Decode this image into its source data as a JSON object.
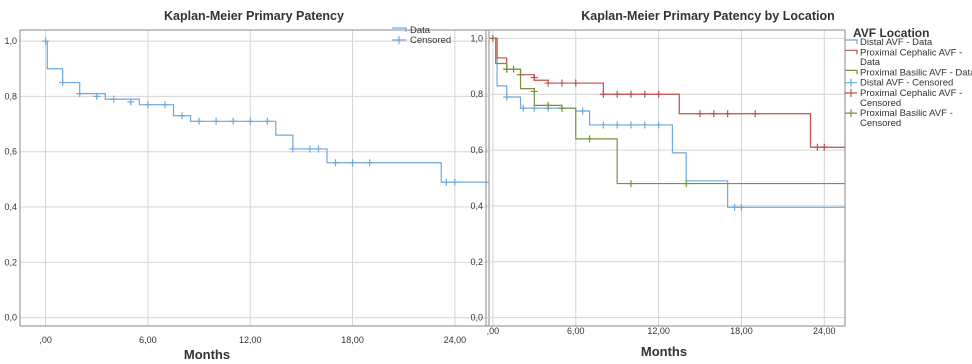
{
  "chart_data": [
    {
      "type": "line",
      "title": "Kaplan-Meier Primary Patency",
      "xlabel": "Months",
      "ylabel": "",
      "xlim": [
        -1.5,
        26
      ],
      "ylim": [
        -0.03,
        1.04
      ],
      "x_ticks": [
        0,
        6,
        12,
        18,
        24
      ],
      "x_tick_labels": [
        ",00",
        "6,00",
        "12,00",
        "18,00",
        "24,00"
      ],
      "y_ticks": [
        0,
        0.2,
        0.4,
        0.6,
        0.8,
        1.0
      ],
      "y_tick_labels": [
        "0,0",
        "0,2",
        "0,4",
        "0,6",
        "0,8",
        "1,0"
      ],
      "grid": true,
      "legend": {
        "position": "top-right",
        "entries": [
          {
            "label": "Data",
            "marker": "line",
            "color": "#6fa8dc"
          },
          {
            "label": "Censored",
            "marker": "plus",
            "color": "#6fa8dc"
          }
        ]
      },
      "series": [
        {
          "name": "Data",
          "color": "#6fa8dc",
          "steps": [
            [
              0,
              1.0
            ],
            [
              0.1,
              0.9
            ],
            [
              1,
              0.85
            ],
            [
              2,
              0.81
            ],
            [
              3.5,
              0.79
            ],
            [
              5.5,
              0.77
            ],
            [
              7.5,
              0.73
            ],
            [
              8.5,
              0.71
            ],
            [
              13.5,
              0.66
            ],
            [
              14.5,
              0.61
            ],
            [
              16.5,
              0.56
            ],
            [
              23.2,
              0.49
            ]
          ],
          "x_end": 26,
          "censored": [
            [
              0,
              1.0
            ],
            [
              1,
              0.85
            ],
            [
              2,
              0.81
            ],
            [
              3,
              0.8
            ],
            [
              4,
              0.79
            ],
            [
              5,
              0.78
            ],
            [
              6,
              0.77
            ],
            [
              7,
              0.77
            ],
            [
              8,
              0.73
            ],
            [
              9,
              0.71
            ],
            [
              10,
              0.71
            ],
            [
              11,
              0.71
            ],
            [
              12,
              0.71
            ],
            [
              13,
              0.71
            ],
            [
              14.5,
              0.61
            ],
            [
              15.5,
              0.61
            ],
            [
              16,
              0.61
            ],
            [
              17,
              0.56
            ],
            [
              18,
              0.56
            ],
            [
              19,
              0.56
            ],
            [
              23.5,
              0.49
            ],
            [
              24,
              0.49
            ]
          ]
        }
      ]
    },
    {
      "type": "line",
      "title": "Kaplan-Meier Primary Patency by Location",
      "xlabel": "Months",
      "ylabel": "",
      "xlim": [
        -0.5,
        25.5
      ],
      "ylim": [
        -0.03,
        1.03
      ],
      "x_ticks": [
        0,
        6,
        12,
        18,
        24
      ],
      "x_tick_labels": [
        ",00",
        "6,00",
        "12,00",
        "18,00",
        "24,00"
      ],
      "y_ticks": [
        0,
        0.2,
        0.4,
        0.6,
        0.8,
        1.0
      ],
      "y_tick_labels": [
        "0,0",
        "0,2",
        "0,4",
        "0,6",
        "0,8",
        "1,0"
      ],
      "grid": true,
      "legend": {
        "title": "AVF Location",
        "position": "top-right",
        "entries": [
          {
            "label_lines": [
              "Distal AVF - Data"
            ],
            "marker": "line",
            "color": "#6fa8dc"
          },
          {
            "label_lines": [
              "Proximal Cephalic AVF -",
              "Data"
            ],
            "marker": "line",
            "color": "#c0504d"
          },
          {
            "label_lines": [
              "Proximal Basilic AVF - Data"
            ],
            "marker": "line",
            "color": "#77933c"
          },
          {
            "label_lines": [
              "Distal AVF - Censored"
            ],
            "marker": "plus",
            "color": "#6fa8dc"
          },
          {
            "label_lines": [
              "Proximal Cephalic AVF -",
              "Censored"
            ],
            "marker": "plus",
            "color": "#c0504d"
          },
          {
            "label_lines": [
              "Proximal Basilic AVF -",
              "Censored"
            ],
            "marker": "plus",
            "color": "#77933c"
          }
        ]
      },
      "series": [
        {
          "name": "Distal AVF - Data",
          "color": "#6fa8dc",
          "steps": [
            [
              0,
              1.0
            ],
            [
              0.3,
              0.83
            ],
            [
              1,
              0.79
            ],
            [
              2,
              0.75
            ],
            [
              6,
              0.74
            ],
            [
              7,
              0.69
            ],
            [
              13,
              0.59
            ],
            [
              14,
              0.49
            ],
            [
              17,
              0.395
            ]
          ],
          "x_end": 25.5,
          "censored": [
            [
              1,
              0.79
            ],
            [
              2.2,
              0.75
            ],
            [
              3,
              0.75
            ],
            [
              4,
              0.75
            ],
            [
              5,
              0.75
            ],
            [
              6.5,
              0.74
            ],
            [
              8,
              0.69
            ],
            [
              9,
              0.69
            ],
            [
              10,
              0.69
            ],
            [
              11,
              0.69
            ],
            [
              12,
              0.69
            ],
            [
              17.5,
              0.395
            ],
            [
              18,
              0.395
            ]
          ]
        },
        {
          "name": "Proximal Cephalic AVF - Data",
          "color": "#c0504d",
          "steps": [
            [
              0,
              1.0
            ],
            [
              0.3,
              0.93
            ],
            [
              1,
              0.89
            ],
            [
              2,
              0.87
            ],
            [
              3,
              0.85
            ],
            [
              4,
              0.84
            ],
            [
              8,
              0.8
            ],
            [
              13.5,
              0.73
            ],
            [
              23,
              0.61
            ]
          ],
          "x_end": 25.5,
          "censored": [
            [
              0,
              1.0
            ],
            [
              1,
              0.89
            ],
            [
              2,
              0.87
            ],
            [
              3,
              0.86
            ],
            [
              4,
              0.84
            ],
            [
              5,
              0.84
            ],
            [
              6,
              0.84
            ],
            [
              8,
              0.8
            ],
            [
              9,
              0.8
            ],
            [
              10,
              0.8
            ],
            [
              11,
              0.8
            ],
            [
              12,
              0.8
            ],
            [
              15,
              0.73
            ],
            [
              16,
              0.73
            ],
            [
              17,
              0.73
            ],
            [
              19,
              0.73
            ],
            [
              23.5,
              0.61
            ],
            [
              24,
              0.61
            ]
          ]
        },
        {
          "name": "Proximal Basilic AVF - Data",
          "color": "#77933c",
          "steps": [
            [
              0,
              1.0
            ],
            [
              0.2,
              0.91
            ],
            [
              1,
              0.89
            ],
            [
              2,
              0.82
            ],
            [
              3,
              0.76
            ],
            [
              5,
              0.75
            ],
            [
              6,
              0.64
            ],
            [
              9,
              0.48
            ]
          ],
          "x_end": 25.5,
          "censored": [
            [
              1,
              0.89
            ],
            [
              1.5,
              0.89
            ],
            [
              3,
              0.81
            ],
            [
              4,
              0.76
            ],
            [
              5,
              0.75
            ],
            [
              7,
              0.64
            ],
            [
              10,
              0.48
            ],
            [
              14,
              0.48
            ]
          ]
        }
      ]
    }
  ]
}
